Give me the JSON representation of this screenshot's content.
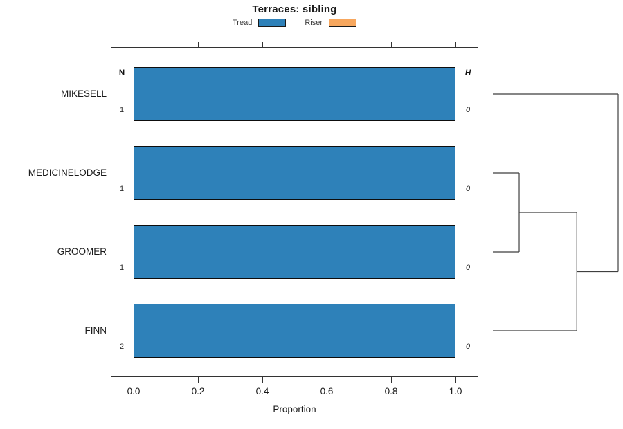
{
  "chart_data": {
    "type": "bar",
    "orientation": "horizontal",
    "title": "Terraces: sibling",
    "xlabel": "Proportion",
    "xlim": [
      0,
      1
    ],
    "xticks": [
      0.0,
      0.2,
      0.4,
      0.6,
      0.8,
      1.0
    ],
    "xtick_labels": [
      "0.0",
      "0.2",
      "0.4",
      "0.6",
      "0.8",
      "1.0"
    ],
    "grid": false,
    "legend_position": "top-center",
    "series": [
      {
        "name": "Tread",
        "color": "#2E81B9"
      },
      {
        "name": "Riser",
        "color": "#F7A75E"
      }
    ],
    "left_column_header": "N",
    "right_column_header": "H",
    "rows": [
      {
        "category": "MIKESELL",
        "n": "1",
        "h": "0",
        "values": {
          "Tread": 1.0,
          "Riser": 0.0
        }
      },
      {
        "category": "MEDICINELODGE",
        "n": "1",
        "h": "0",
        "values": {
          "Tread": 1.0,
          "Riser": 0.0
        }
      },
      {
        "category": "GROOMER",
        "n": "1",
        "h": "0",
        "values": {
          "Tread": 1.0,
          "Riser": 0.0
        }
      },
      {
        "category": "FINN",
        "n": "2",
        "h": "0",
        "values": {
          "Tread": 1.0,
          "Riser": 0.0
        }
      }
    ],
    "dendrogram": {
      "leaf_order": [
        "MIKESELL",
        "MEDICINELODGE",
        "GROOMER",
        "FINN"
      ],
      "merges": [
        {
          "children": [
            1,
            2
          ],
          "height": 0.21
        },
        {
          "children": [
            "m0",
            3
          ],
          "height": 0.67
        },
        {
          "children": [
            0,
            "m1"
          ],
          "height": 1.0
        }
      ],
      "line_color": "#3f3f3f"
    }
  }
}
